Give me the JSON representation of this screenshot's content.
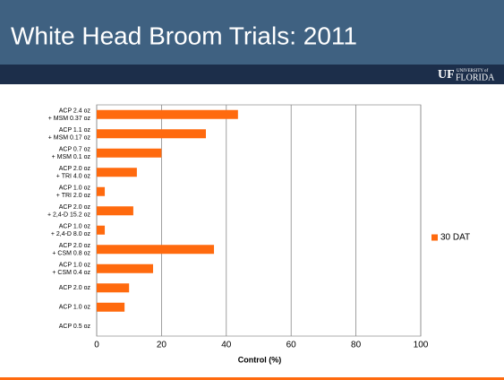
{
  "logo": {
    "mark": "UF",
    "small": "UNIVERSITY of",
    "big": "FLORIDA"
  },
  "chart_data": {
    "type": "barh",
    "title": "White Head Broom Trials: 2011",
    "categories": [
      [
        "ACP 2.4 oz",
        "+ MSM 0.37 oz"
      ],
      [
        "ACP 1.1 oz",
        "+ MSM 0.17 oz"
      ],
      [
        "ACP 0.7 oz",
        "+ MSM 0.1 oz"
      ],
      [
        "ACP 2.0 oz",
        "+ TRI 4.0 oz"
      ],
      [
        "ACP 1.0 oz",
        "+ TRI 2.0 oz"
      ],
      [
        "ACP 2.0 oz",
        "+ 2,4-D 15.2 oz"
      ],
      [
        "ACP 1.0 oz",
        "+ 2,4-D 8.0 oz"
      ],
      [
        "ACP 2.0 oz",
        "+ CSM 0.8 oz"
      ],
      [
        "ACP 1.0 oz",
        "+ CSM 0.4 oz"
      ],
      [
        "ACP 2.0 oz"
      ],
      [
        "ACP 1.0  oz"
      ],
      [
        "ACP 0.5 oz"
      ]
    ],
    "series": [
      {
        "name": "30 DAT",
        "color": "#ff6a0e",
        "values": [
          43.6,
          33.7,
          20,
          12.4,
          2.5,
          11.3,
          2.5,
          36.2,
          17.4,
          10,
          8.6,
          0
        ]
      }
    ],
    "xlabel": "Control (%)",
    "xlim": [
      0,
      100
    ],
    "xticks": [
      0,
      20,
      40,
      60,
      80,
      100
    ],
    "grid": true,
    "legend": "right"
  }
}
